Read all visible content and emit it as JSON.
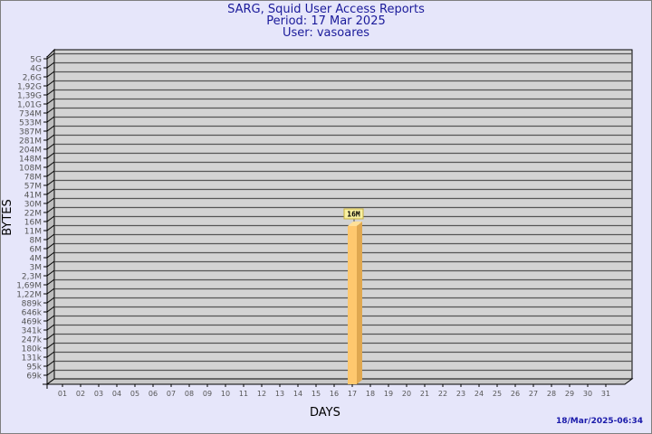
{
  "title": [
    "SARG, Squid User Access Reports",
    "Period: 17 Mar 2025",
    "User: vasoares"
  ],
  "timestamp": "18/Mar/2025-06:34",
  "chart_data": {
    "type": "bar",
    "xlabel": "DAYS",
    "ylabel": "BYTES",
    "y_scale": "log",
    "y_tick_labels": [
      "5G",
      "4G",
      "2,6G",
      "1,92G",
      "1,39G",
      "1,01G",
      "734M",
      "533M",
      "387M",
      "281M",
      "204M",
      "148M",
      "108M",
      "78M",
      "57M",
      "41M",
      "30M",
      "22M",
      "16M",
      "11M",
      "8M",
      "6M",
      "4M",
      "3M",
      "2,3M",
      "1,69M",
      "1,22M",
      "889k",
      "646k",
      "469k",
      "341k",
      "247k",
      "180k",
      "131k",
      "95k",
      "69k"
    ],
    "categories": [
      "01",
      "02",
      "03",
      "04",
      "05",
      "06",
      "07",
      "08",
      "09",
      "10",
      "11",
      "12",
      "13",
      "14",
      "15",
      "16",
      "17",
      "18",
      "19",
      "20",
      "21",
      "22",
      "23",
      "24",
      "25",
      "26",
      "27",
      "28",
      "29",
      "30",
      "31"
    ],
    "values": [
      {
        "x": "17",
        "y": "16M",
        "label": "16M"
      }
    ],
    "grid": true,
    "colors": {
      "bar": "#ffc86e",
      "bar_side": "#e0a850",
      "bar_top": "#ffe098",
      "plot": "#d3d3d3",
      "label_bg": "#f8f0a0"
    }
  }
}
